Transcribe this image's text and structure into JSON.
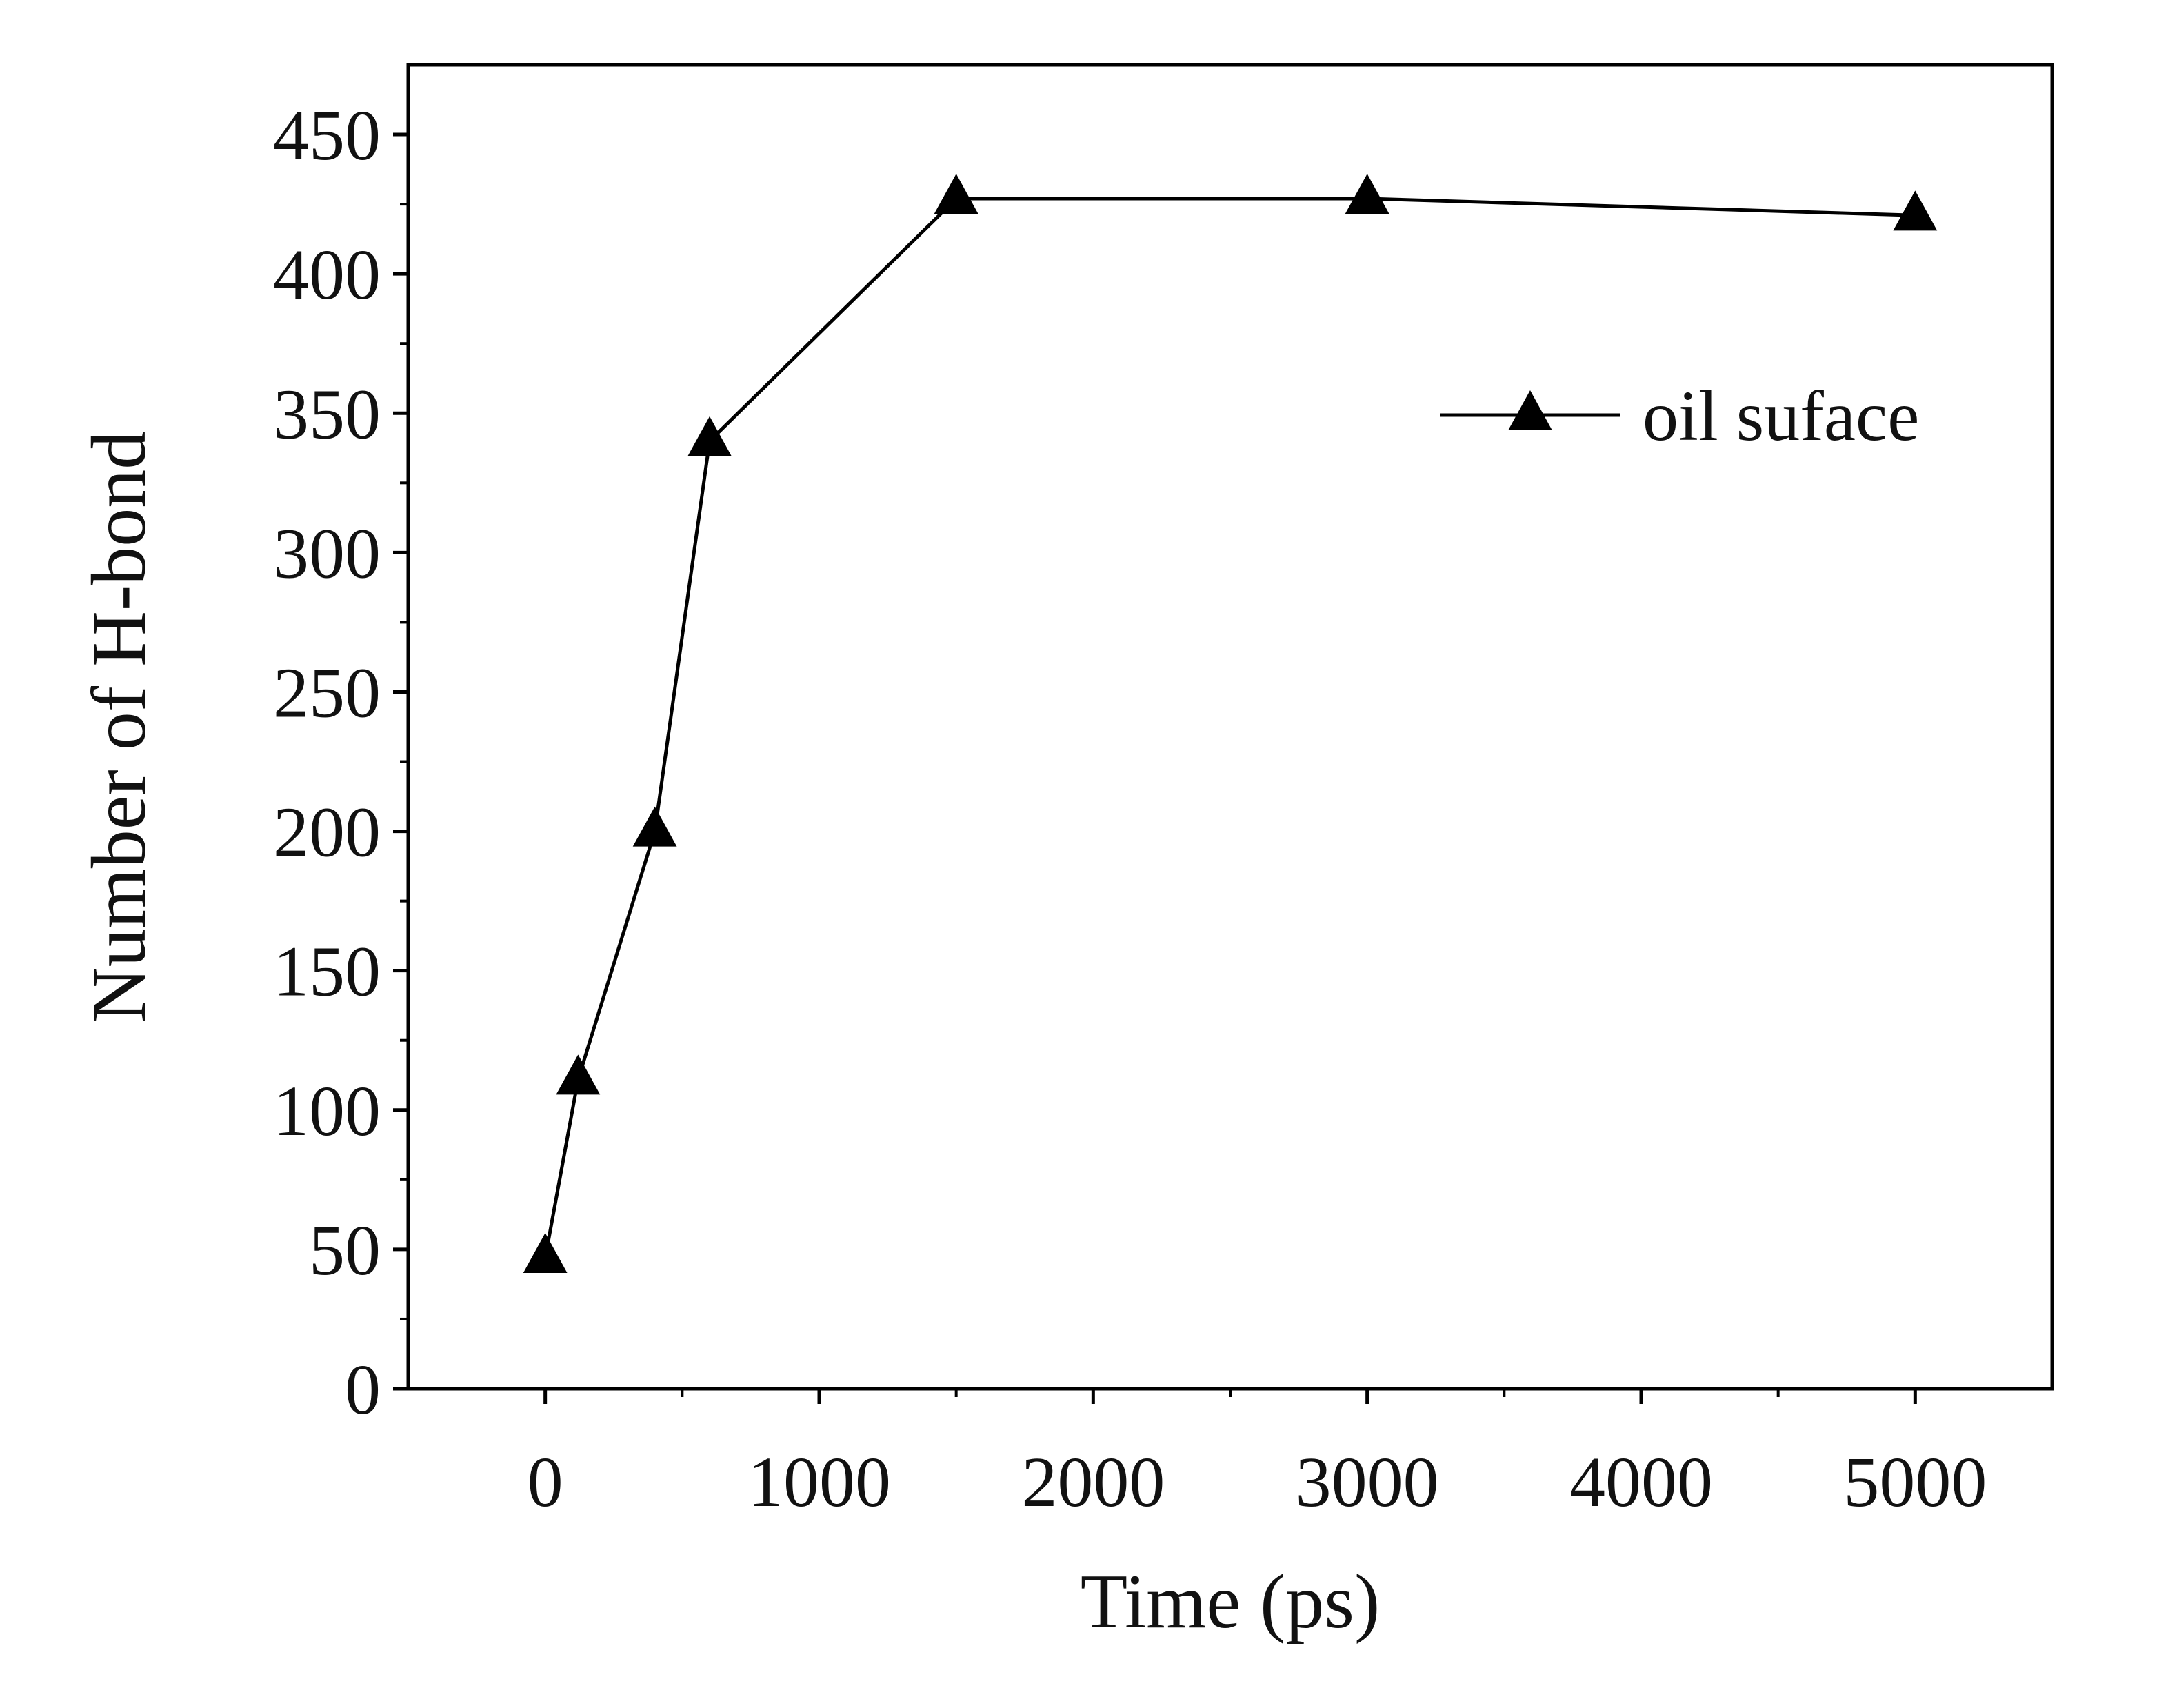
{
  "chart_data": {
    "type": "line",
    "title": "",
    "xlabel": "Time (ps)",
    "ylabel": "Number of H-bond",
    "xlim": [
      -500,
      5500
    ],
    "ylim": [
      0,
      475
    ],
    "xticks": [
      0,
      1000,
      2000,
      3000,
      4000,
      5000
    ],
    "xtick_labels": [
      "0",
      "1000",
      "2000",
      "3000",
      "4000",
      "5000"
    ],
    "yticks": [
      0,
      50,
      100,
      150,
      200,
      250,
      300,
      350,
      400,
      450
    ],
    "ytick_labels": [
      "0",
      "50",
      "100",
      "150",
      "200",
      "250",
      "300",
      "350",
      "400",
      "450"
    ],
    "grid": false,
    "legend_position": "upper-right",
    "series": [
      {
        "name": "oil suface",
        "marker": "triangle",
        "color": "#000000",
        "x": [
          0,
          120,
          400,
          600,
          1500,
          3000,
          5000
        ],
        "y": [
          47,
          111,
          200,
          340,
          427,
          427,
          421
        ]
      }
    ]
  }
}
